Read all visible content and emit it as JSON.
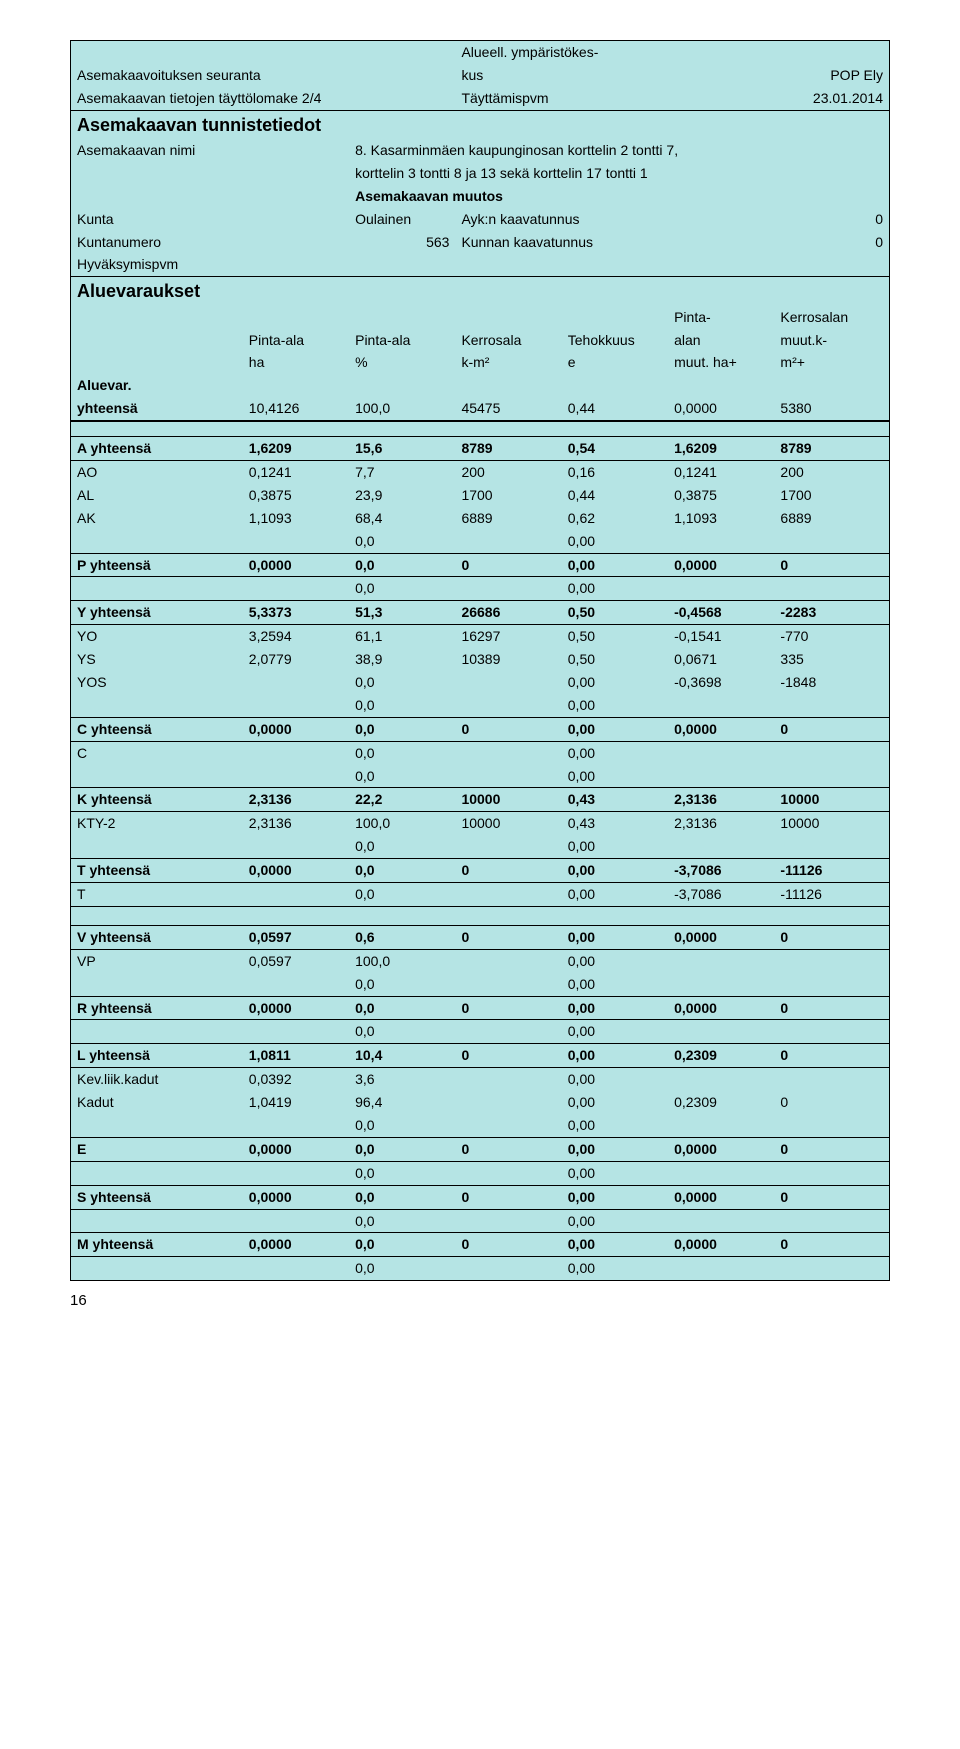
{
  "header": {
    "line1_center_a": "Alueell. ympäristökes-",
    "line2_left": "Asemakaavoituksen seuranta",
    "line2_center": "kus",
    "line2_right": "POP Ely",
    "line3_left": "Asemakaavan tietojen täyttölomake 2/4",
    "line3_center": "Täyttämispvm",
    "line3_right": "23.01.2014",
    "title": "Asemakaavan tunnistetiedot",
    "nimi_label": "Asemakaavan nimi",
    "nimi_value1": "8. Kasarminmäen kaupunginosan korttelin 2 tontti 7,",
    "nimi_value2": "korttelin 3 tontti 8 ja 13 sekä korttelin 17 tontti 1",
    "muutos": "Asemakaavan muutos",
    "kunta_label": "Kunta",
    "kunta_value": "Oulainen",
    "ayk_label": "Ayk:n kaavatunnus",
    "ayk_value": "0",
    "kuntanumero_label": "Kuntanumero",
    "kuntanumero_value": "563",
    "kunnan_label": "Kunnan kaavatunnus",
    "kunnan_value": "0",
    "hyvaksymispvm": "Hyväksymispvm"
  },
  "section_title": "Aluevaraukset",
  "col_headers": {
    "c2a": "Pinta-ala",
    "c2b": "ha",
    "c3a": "Pinta-ala",
    "c3b": "%",
    "c4a": "Kerrosala",
    "c4b": "k-m²",
    "c5a": "Tehokkuus",
    "c5b": "e",
    "c6a": "Pinta-",
    "c6b": "alan",
    "c6c": "muut. ha+",
    "c7a": "Kerrosalan",
    "c7b": "muut.k-",
    "c7c": "m²+"
  },
  "aluevar": {
    "label1": "Aluevar.",
    "label2": "yhteensä",
    "r": [
      "10,4126",
      "100,0",
      "45475",
      "0,44",
      "0,0000",
      "5380"
    ]
  },
  "groups": [
    {
      "head": {
        "label": "A yhteensä",
        "r": [
          "1,6209",
          "15,6",
          "8789",
          "0,54",
          "1,6209",
          "8789"
        ]
      },
      "rows": [
        {
          "label": "AO",
          "r": [
            "0,1241",
            "7,7",
            "200",
            "0,16",
            "0,1241",
            "200"
          ]
        },
        {
          "label": "AL",
          "r": [
            "0,3875",
            "23,9",
            "1700",
            "0,44",
            "0,3875",
            "1700"
          ]
        },
        {
          "label": "AK",
          "r": [
            "1,1093",
            "68,4",
            "6889",
            "0,62",
            "1,1093",
            "6889"
          ]
        },
        {
          "label": "",
          "r": [
            "",
            "0,0",
            "",
            "0,00",
            "",
            ""
          ]
        }
      ]
    },
    {
      "head": {
        "label": "P yhteensä",
        "r": [
          "0,0000",
          "0,0",
          "0",
          "0,00",
          "0,0000",
          "0"
        ]
      },
      "rows": [
        {
          "label": "",
          "r": [
            "",
            "0,0",
            "",
            "0,00",
            "",
            ""
          ]
        }
      ]
    },
    {
      "head": {
        "label": "Y yhteensä",
        "r": [
          "5,3373",
          "51,3",
          "26686",
          "0,50",
          "-0,4568",
          "-2283"
        ]
      },
      "rows": [
        {
          "label": "YO",
          "r": [
            "3,2594",
            "61,1",
            "16297",
            "0,50",
            "-0,1541",
            "-770"
          ]
        },
        {
          "label": "YS",
          "r": [
            "2,0779",
            "38,9",
            "10389",
            "0,50",
            "0,0671",
            "335"
          ]
        },
        {
          "label": "YOS",
          "r": [
            "",
            "0,0",
            "",
            "0,00",
            "-0,3698",
            "-1848"
          ]
        },
        {
          "label": "",
          "r": [
            "",
            "0,0",
            "",
            "0,00",
            "",
            ""
          ]
        }
      ]
    },
    {
      "head": {
        "label": "C yhteensä",
        "r": [
          "0,0000",
          "0,0",
          "0",
          "0,00",
          "0,0000",
          "0"
        ]
      },
      "rows": [
        {
          "label": "C",
          "r": [
            "",
            "0,0",
            "",
            "0,00",
            "",
            ""
          ]
        },
        {
          "label": "",
          "r": [
            "",
            "0,0",
            "",
            "0,00",
            "",
            ""
          ]
        }
      ]
    },
    {
      "head": {
        "label": "K yhteensä",
        "r": [
          "2,3136",
          "22,2",
          "10000",
          "0,43",
          "2,3136",
          "10000"
        ]
      },
      "rows": [
        {
          "label": "KTY-2",
          "r": [
            "2,3136",
            "100,0",
            "10000",
            "0,43",
            "2,3136",
            "10000"
          ]
        },
        {
          "label": "",
          "r": [
            "",
            "0,0",
            "",
            "0,00",
            "",
            ""
          ]
        }
      ]
    },
    {
      "head": {
        "label": "T yhteensä",
        "r": [
          "0,0000",
          "0,0",
          "0",
          "0,00",
          "-3,7086",
          "-11126"
        ]
      },
      "rows": [
        {
          "label": "T",
          "r": [
            "",
            "0,0",
            "",
            "0,00",
            "-3,7086",
            "-11126"
          ]
        }
      ]
    },
    {
      "head": {
        "label": "V yhteensä",
        "r": [
          "0,0597",
          "0,6",
          "0",
          "0,00",
          "0,0000",
          "0"
        ]
      },
      "rows": [
        {
          "label": "VP",
          "r": [
            "0,0597",
            "100,0",
            "",
            "0,00",
            "",
            ""
          ]
        },
        {
          "label": "",
          "r": [
            "",
            "0,0",
            "",
            "0,00",
            "",
            ""
          ]
        }
      ]
    },
    {
      "head": {
        "label": "R yhteensä",
        "r": [
          "0,0000",
          "0,0",
          "0",
          "0,00",
          "0,0000",
          "0"
        ]
      },
      "rows": [
        {
          "label": "",
          "r": [
            "",
            "0,0",
            "",
            "0,00",
            "",
            ""
          ]
        }
      ]
    },
    {
      "head": {
        "label": "L yhteensä",
        "r": [
          "1,0811",
          "10,4",
          "0",
          "0,00",
          "0,2309",
          "0"
        ]
      },
      "rows": [
        {
          "label": "Kev.liik.kadut",
          "r": [
            "0,0392",
            "3,6",
            "",
            "0,00",
            "",
            ""
          ]
        },
        {
          "label": "Kadut",
          "r": [
            "1,0419",
            "96,4",
            "",
            "0,00",
            "0,2309",
            "0"
          ]
        },
        {
          "label": "",
          "r": [
            "",
            "0,0",
            "",
            "0,00",
            "",
            ""
          ]
        }
      ]
    },
    {
      "head": {
        "label": "E",
        "r": [
          "0,0000",
          "0,0",
          "0",
          "0,00",
          "0,0000",
          "0"
        ]
      },
      "rows": [
        {
          "label": "",
          "r": [
            "",
            "0,0",
            "",
            "0,00",
            "",
            ""
          ]
        }
      ]
    },
    {
      "head": {
        "label": "S yhteensä",
        "r": [
          "0,0000",
          "0,0",
          "0",
          "0,00",
          "0,0000",
          "0"
        ]
      },
      "rows": [
        {
          "label": "",
          "r": [
            "",
            "0,0",
            "",
            "0,00",
            "",
            ""
          ]
        }
      ]
    },
    {
      "head": {
        "label": "M yhteensä",
        "r": [
          "0,0000",
          "0,0",
          "0",
          "0,00",
          "0,0000",
          "0"
        ]
      },
      "rows": [
        {
          "label": "",
          "r": [
            "",
            "0,0",
            "",
            "0,00",
            "",
            ""
          ]
        }
      ]
    }
  ],
  "page_number": "16"
}
